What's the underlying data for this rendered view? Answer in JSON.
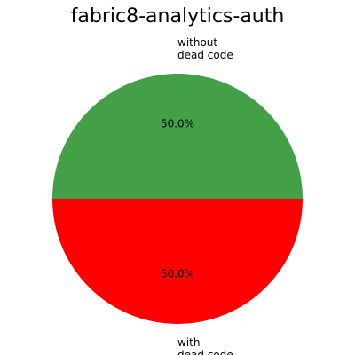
{
  "chart_data": {
    "type": "pie",
    "title": "fabric8-analytics-auth",
    "slices": [
      {
        "label_lines": [
          "without",
          "dead code"
        ],
        "value": 50.0,
        "pct_label": "50.0%",
        "color": "#43a047"
      },
      {
        "label_lines": [
          "with",
          "dead code"
        ],
        "value": 50.0,
        "pct_label": "50.0%",
        "color": "#ff0000"
      }
    ]
  }
}
